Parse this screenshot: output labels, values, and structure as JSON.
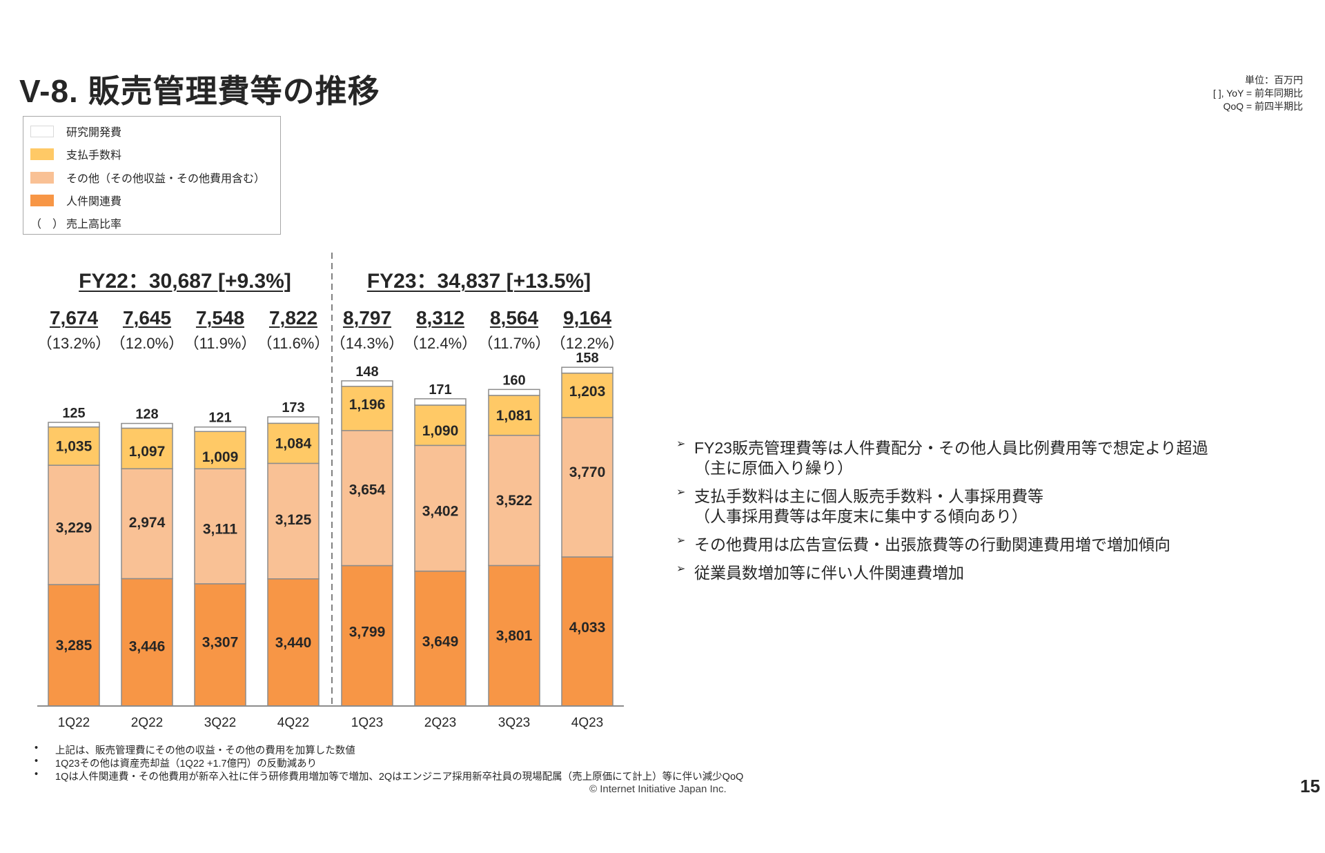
{
  "header": {
    "title": "V-8.  販売管理費等の推移",
    "unit_lines": [
      "単位：百万円",
      "[ ], YoY = 前年同期比",
      "QoQ = 前四半期比"
    ]
  },
  "legend": {
    "items": [
      {
        "label": "研究開発費",
        "color": "#FFFFFF"
      },
      {
        "label": "支払手数料",
        "color": "#FFC966"
      },
      {
        "label": "その他（その他収益・その他費用含む）",
        "color": "#F9C195"
      },
      {
        "label": "人件関連費",
        "color": "#F79646"
      }
    ],
    "ratio_note": {
      "symbol": "（　）",
      "label": "売上高比率"
    }
  },
  "fiscal_years": [
    {
      "label": "FY22：30,687 [+9.3%]"
    },
    {
      "label": "FY23：34,837 [+13.5%]"
    }
  ],
  "chart_data": {
    "type": "bar",
    "stacked": true,
    "title": "販売管理費等の推移",
    "unit": "百万円",
    "categories": [
      "1Q22",
      "2Q22",
      "3Q22",
      "4Q22",
      "1Q23",
      "2Q23",
      "3Q23",
      "4Q23"
    ],
    "series": [
      {
        "name": "人件関連費",
        "color": "#F79646",
        "values": [
          3285,
          3446,
          3307,
          3440,
          3799,
          3649,
          3801,
          4033
        ]
      },
      {
        "name": "その他（その他収益・その他費用含む）",
        "color": "#F9C195",
        "values": [
          3229,
          2974,
          3111,
          3125,
          3654,
          3402,
          3522,
          3770
        ]
      },
      {
        "name": "支払手数料",
        "color": "#FFC966",
        "values": [
          1035,
          1097,
          1009,
          1084,
          1196,
          1090,
          1081,
          1203
        ]
      },
      {
        "name": "研究開発費",
        "color": "#FFFFFF",
        "values": [
          125,
          128,
          121,
          173,
          148,
          171,
          160,
          158
        ]
      }
    ],
    "totals": [
      "7,674",
      "7,645",
      "7,548",
      "7,822",
      "8,797",
      "8,312",
      "8,564",
      "9,164"
    ],
    "sales_ratios": [
      "（13.2%）",
      "（12.0%）",
      "（11.9%）",
      "（11.6%）",
      "（14.3%）",
      "（12.4%）",
      "（11.7%）",
      "（12.2%）"
    ],
    "labels": {
      "personnel": [
        "3,285",
        "3,446",
        "3,307",
        "3,440",
        "3,799",
        "3,649",
        "3,801",
        "4,033"
      ],
      "other": [
        "3,229",
        "2,974",
        "3,111",
        "3,125",
        "3,654",
        "3,402",
        "3,522",
        "3,770"
      ],
      "fees": [
        "1,035",
        "1,097",
        "1,009",
        "1,084",
        "1,196",
        "1,090",
        "1,081",
        "1,203"
      ],
      "rnd": [
        "125",
        "128",
        "121",
        "173",
        "148",
        "171",
        "160",
        "158"
      ]
    },
    "xlabel": "",
    "ylabel": "",
    "ylim": [
      0,
      9500
    ],
    "grid": false,
    "legend_position": "top-left"
  },
  "bullets": [
    {
      "lines": [
        "FY23販売管理費等は人件費配分・その他人員比例費用等で想定より超過",
        "（主に原価入り繰り）"
      ]
    },
    {
      "lines": [
        "支払手数料は主に個人販売手数料・人事採用費等",
        "（人事採用費等は年度末に集中する傾向あり）"
      ]
    },
    {
      "lines": [
        "その他費用は広告宣伝費・出張旅費等の行動関連費用増で増加傾向"
      ]
    },
    {
      "lines": [
        "従業員数増加等に伴い人件関連費増加"
      ]
    }
  ],
  "bullet_symbol": "➢",
  "footnotes": [
    "上記は、販売管理費にその他の収益・その他の費用を加算した数値",
    "1Q23その他は資産売却益（1Q22 +1.7億円）の反動減あり",
    "1Qは人件関連費・その他費用が新卒入社に伴う研修費用増加等で増加、2Qはエンジニア採用新卒社員の現場配属（売上原価にて計上）等に伴い減少QoQ"
  ],
  "footnote_symbol": "•",
  "copyright": "© Internet Initiative Japan Inc.",
  "page_number": "15"
}
